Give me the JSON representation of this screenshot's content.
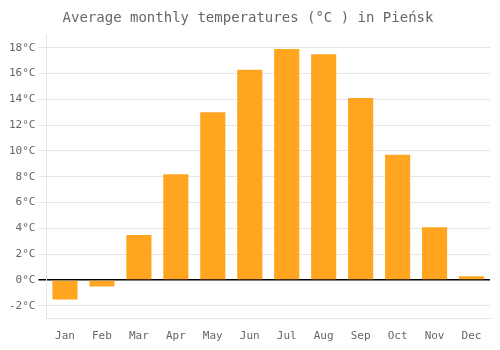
{
  "chart_data": {
    "type": "bar",
    "title": "Average monthly temperatures (°C ) in Pieńsk",
    "categories": [
      "Jan",
      "Feb",
      "Mar",
      "Apr",
      "May",
      "Jun",
      "Jul",
      "Aug",
      "Sep",
      "Oct",
      "Nov",
      "Dec"
    ],
    "values": [
      -1.5,
      -0.5,
      3.5,
      8.2,
      13.0,
      16.3,
      17.9,
      17.5,
      14.1,
      9.7,
      4.1,
      0.3
    ],
    "color": "#FFA520",
    "ylim": [
      -3,
      19
    ],
    "yticks": [
      {
        "value": -2,
        "label": "-2°C"
      },
      {
        "value": 0,
        "label": "0°C"
      },
      {
        "value": 2,
        "label": "2°C"
      },
      {
        "value": 4,
        "label": "4°C"
      },
      {
        "value": 6,
        "label": "6°C"
      },
      {
        "value": 8,
        "label": "8°C"
      },
      {
        "value": 10,
        "label": "10°C"
      },
      {
        "value": 12,
        "label": "12°C"
      },
      {
        "value": 14,
        "label": "14°C"
      },
      {
        "value": 16,
        "label": "16°C"
      },
      {
        "value": 18,
        "label": "18°C"
      }
    ],
    "grid": true
  }
}
